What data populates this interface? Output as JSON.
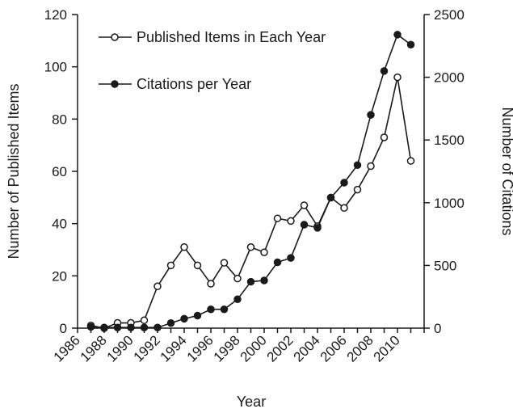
{
  "chart_data": {
    "type": "line",
    "xlabel": "Year",
    "ylabel_left": "Number of Published Items",
    "ylabel_right": "Number of Citations",
    "x": [
      1986,
      1987,
      1988,
      1989,
      1990,
      1991,
      1992,
      1993,
      1994,
      1995,
      1996,
      1997,
      1998,
      1999,
      2000,
      2001,
      2002,
      2003,
      2004,
      2005,
      2006,
      2007,
      2008,
      2009,
      2010,
      2011
    ],
    "xlim": [
      1986,
      2012
    ],
    "x_ticks": [
      "1986",
      "1988",
      "1990",
      "1992",
      "1994",
      "1996",
      "1998",
      "2000",
      "2002",
      "2004",
      "2006",
      "2008",
      "2010"
    ],
    "ylim_left": [
      0,
      120
    ],
    "y_ticks_left": [
      "0",
      "20",
      "40",
      "60",
      "80",
      "100",
      "120"
    ],
    "ylim_right": [
      0,
      2500
    ],
    "y_ticks_right": [
      "0",
      "500",
      "1000",
      "1500",
      "2000",
      "2500"
    ],
    "legend_position": "top-left",
    "series": [
      {
        "name": "Published Items in Each Year",
        "axis": "left",
        "marker": "open-circle",
        "color": "#1a1a1a",
        "values": [
          null,
          1,
          0,
          2,
          2,
          3,
          16,
          24,
          31,
          24,
          17,
          25,
          19,
          31,
          29,
          42,
          41,
          47,
          39,
          50,
          46,
          53,
          62,
          73,
          96,
          64
        ]
      },
      {
        "name": "Citations per Year",
        "axis": "right",
        "marker": "filled-circle",
        "color": "#1a1a1a",
        "values": [
          null,
          10,
          5,
          5,
          5,
          5,
          5,
          40,
          75,
          100,
          150,
          150,
          230,
          370,
          380,
          525,
          560,
          825,
          800,
          1040,
          1160,
          1300,
          1700,
          2050,
          2340,
          2260
        ]
      }
    ]
  }
}
